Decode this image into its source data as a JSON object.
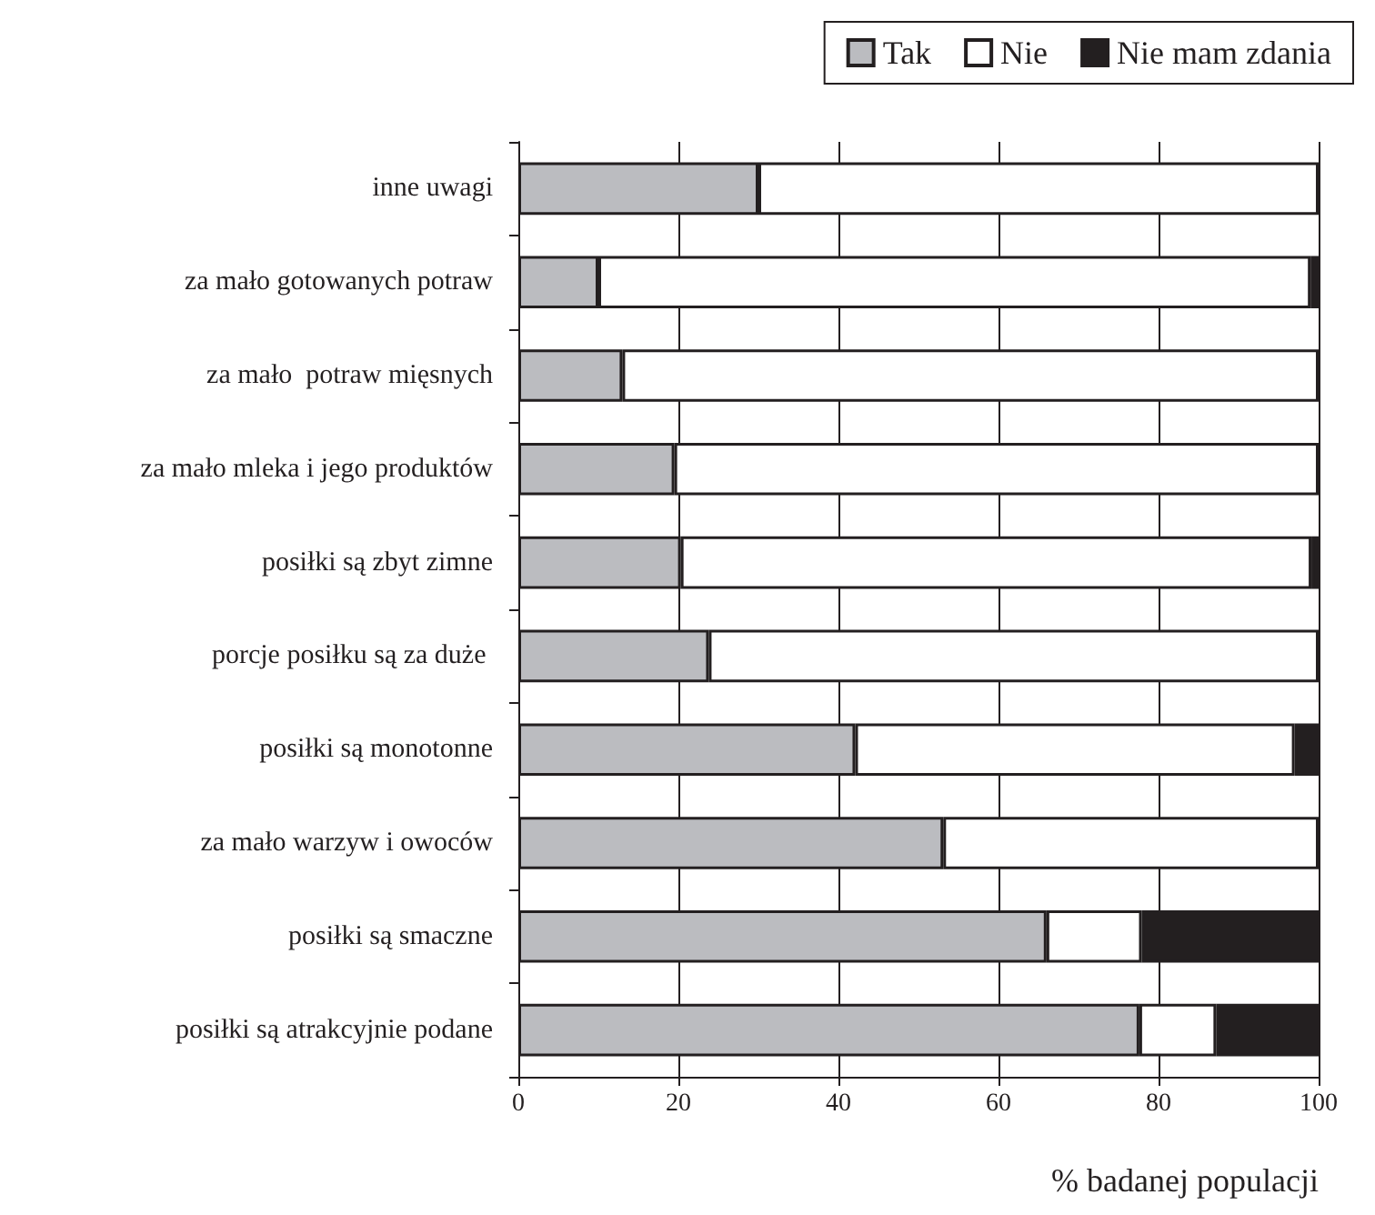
{
  "chart_data": {
    "type": "bar",
    "orientation": "horizontal",
    "stacked": true,
    "xlabel": "% badanej populacji",
    "categories": [
      "inne uwagi",
      "za mało gotowanych potraw",
      "za mało  potraw mięsnych",
      "za mało mleka i jego produktów",
      "posiłki są zbyt zimne",
      "porcje posiłku są za duże ",
      "posiłki są monotonne",
      "za mało warzyw i owoców",
      "posiłki są smaczne",
      "posiłki są atrakcyjnie podane"
    ],
    "series": [
      {
        "name": "Tak",
        "color": "#bbbcc0",
        "values": [
          30,
          10,
          13,
          19.5,
          20.3,
          23.8,
          42.1,
          53.1,
          66,
          77.6
        ]
      },
      {
        "name": "Nie",
        "color": "#ffffff",
        "values": [
          70,
          89,
          87,
          80.5,
          78.8,
          76.2,
          54.9,
          46.9,
          11.9,
          9.6
        ]
      },
      {
        "name": "Nie mam zdania",
        "color": "#231f20",
        "values": [
          null,
          1,
          null,
          null,
          0.9,
          null,
          3,
          null,
          22.1,
          12.8
        ]
      }
    ],
    "xlim": [
      0,
      100
    ],
    "xticks": [
      0,
      20,
      40,
      60,
      80,
      100
    ],
    "grid": "x",
    "legend": "top right"
  }
}
